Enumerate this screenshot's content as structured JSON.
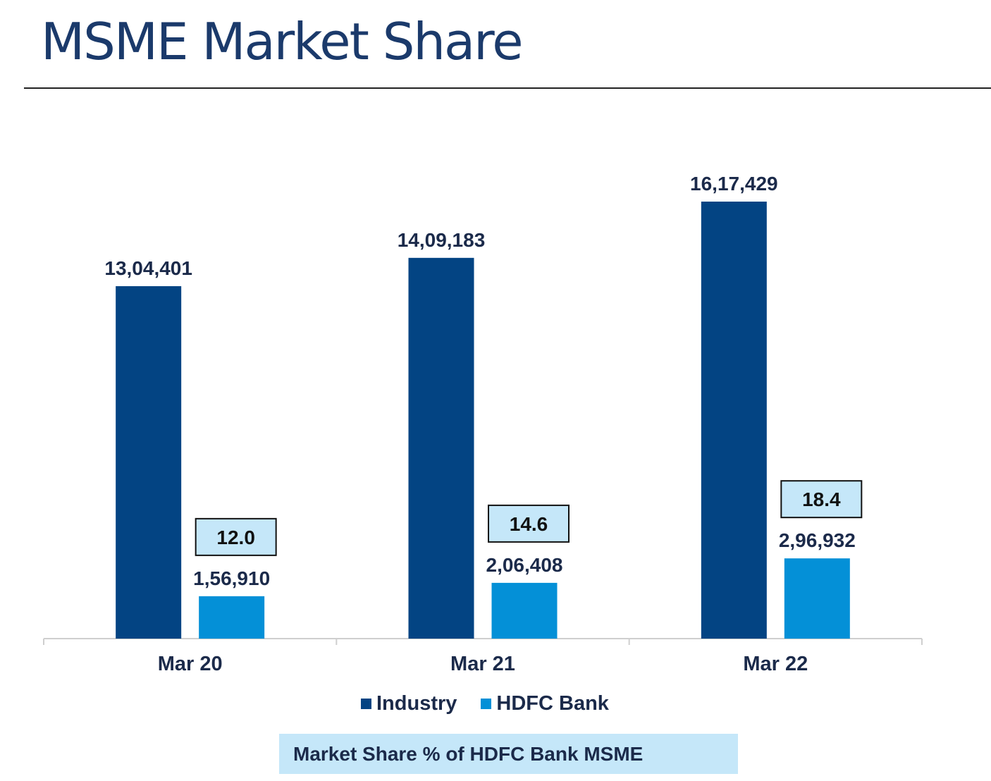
{
  "page": {
    "title": "MSME Market Share",
    "footnote": "Market Share % of HDFC Bank MSME"
  },
  "colors": {
    "industry": "#034483",
    "hdfc_bank": "#0490d7",
    "callout_fill": "#c5e7f9",
    "title": "#1b3a6b"
  },
  "legend": {
    "placement": "bottom",
    "items": [
      {
        "label": "Industry",
        "color": "#034483"
      },
      {
        "label": "HDFC Bank",
        "color": "#0490d7"
      }
    ]
  },
  "chart_data": {
    "type": "bar",
    "title": "MSME Market Share",
    "categories": [
      "Mar 20",
      "Mar 21",
      "Mar 22"
    ],
    "series": [
      {
        "name": "Industry",
        "values": [
          1304401,
          1409183,
          1617429
        ],
        "labels": [
          "13,04,401",
          "14,09,183",
          "16,17,429"
        ]
      },
      {
        "name": "HDFC Bank",
        "values": [
          156910,
          206408,
          296932
        ],
        "labels": [
          "1,56,910",
          "2,06,408",
          "2,96,932"
        ]
      }
    ],
    "annotations": {
      "name": "Market Share % of HDFC Bank MSME",
      "values": [
        12.0,
        14.6,
        18.4
      ],
      "labels": [
        "12.0",
        "14.6",
        "18.4"
      ]
    },
    "xlabel": "",
    "ylabel": "",
    "ylim": [
      0,
      1617429
    ],
    "grid": false,
    "value_axis_shown": false
  }
}
